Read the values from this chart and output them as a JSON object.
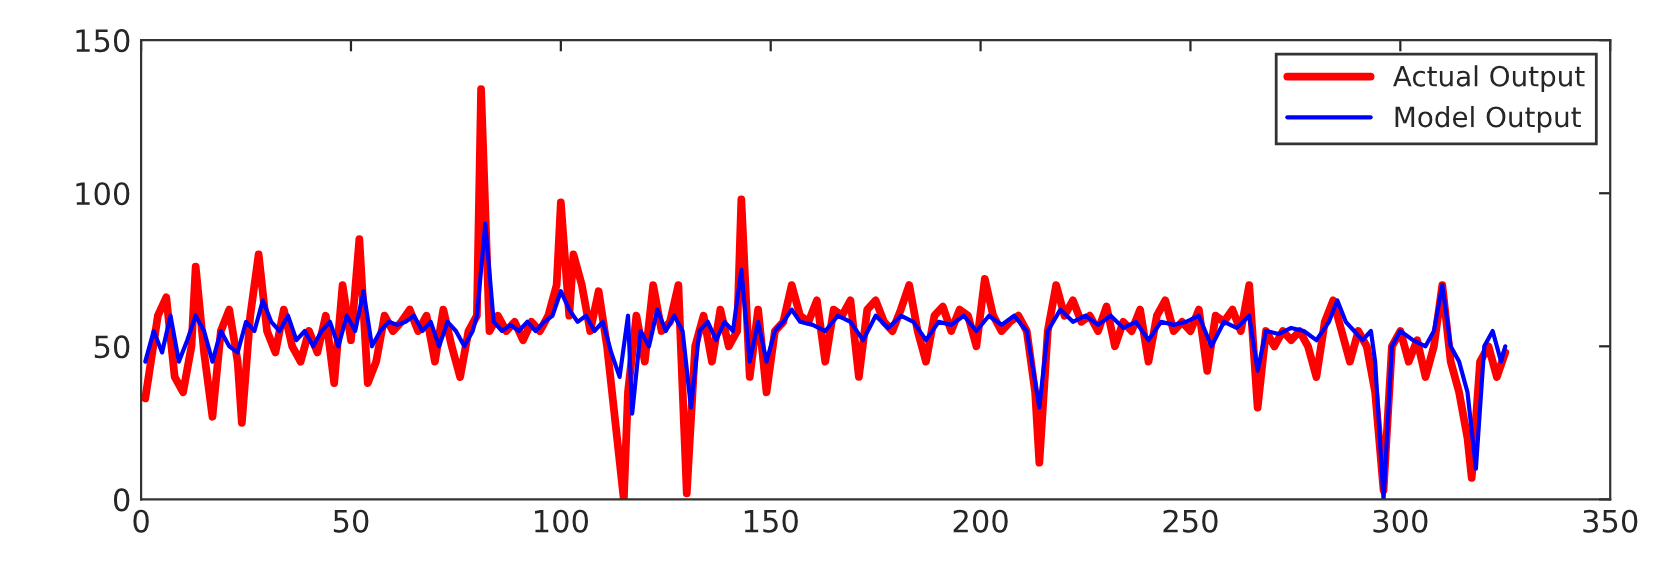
{
  "chart_data": {
    "type": "line",
    "xlim": [
      0,
      350
    ],
    "xticks": [
      0,
      50,
      100,
      150,
      200,
      250,
      300,
      350
    ],
    "ylim": [
      0,
      150
    ],
    "yticks": [
      0,
      50,
      100,
      150
    ],
    "grid": false,
    "legend": "top right",
    "marker": "none",
    "line_style": "solid",
    "series": [
      {
        "name": "Actual Output",
        "color": "#ff0000",
        "x": [
          1,
          4,
          6,
          8,
          10,
          12,
          13,
          15,
          17,
          19,
          21,
          23,
          24,
          26,
          28,
          30,
          32,
          34,
          36,
          38,
          40,
          42,
          44,
          46,
          48,
          50,
          52,
          54,
          56,
          58,
          60,
          62,
          64,
          66,
          68,
          70,
          72,
          74,
          76,
          78,
          80,
          81,
          83,
          85,
          87,
          89,
          91,
          93,
          95,
          97,
          99,
          100,
          102,
          103,
          105,
          107,
          109,
          111,
          113,
          115,
          116,
          118,
          120,
          122,
          124,
          126,
          128,
          130,
          132,
          134,
          136,
          138,
          140,
          142,
          143,
          145,
          147,
          149,
          151,
          153,
          155,
          157,
          159,
          161,
          163,
          165,
          167,
          169,
          171,
          173,
          175,
          177,
          179,
          181,
          183,
          185,
          187,
          189,
          191,
          193,
          195,
          197,
          199,
          201,
          203,
          205,
          207,
          209,
          211,
          213,
          214,
          216,
          218,
          220,
          222,
          224,
          226,
          228,
          230,
          232,
          234,
          236,
          238,
          240,
          242,
          244,
          246,
          248,
          250,
          252,
          254,
          256,
          258,
          260,
          262,
          264,
          266,
          268,
          270,
          272,
          274,
          276,
          278,
          280,
          282,
          284,
          286,
          288,
          290,
          292,
          294,
          296,
          298,
          300,
          302,
          304,
          306,
          308,
          310,
          312,
          314,
          316,
          317,
          319,
          321,
          323,
          325
        ],
        "values": [
          33,
          60,
          66,
          40,
          35,
          50,
          76,
          48,
          27,
          55,
          62,
          45,
          25,
          60,
          80,
          55,
          48,
          62,
          50,
          45,
          55,
          48,
          60,
          38,
          70,
          52,
          85,
          38,
          45,
          60,
          55,
          58,
          62,
          55,
          60,
          45,
          62,
          50,
          40,
          55,
          60,
          134,
          55,
          60,
          55,
          58,
          52,
          58,
          55,
          60,
          70,
          97,
          60,
          80,
          70,
          55,
          68,
          50,
          25,
          0,
          35,
          60,
          45,
          70,
          55,
          58,
          70,
          2,
          50,
          60,
          45,
          62,
          50,
          55,
          98,
          40,
          62,
          35,
          55,
          58,
          70,
          60,
          58,
          65,
          45,
          62,
          60,
          65,
          40,
          62,
          65,
          58,
          55,
          62,
          70,
          55,
          45,
          60,
          63,
          55,
          62,
          60,
          50,
          72,
          60,
          55,
          58,
          60,
          55,
          35,
          12,
          55,
          70,
          60,
          65,
          58,
          60,
          55,
          63,
          50,
          58,
          55,
          62,
          45,
          60,
          65,
          55,
          58,
          55,
          62,
          42,
          60,
          58,
          62,
          55,
          70,
          30,
          55,
          50,
          55,
          52,
          55,
          50,
          40,
          58,
          65,
          55,
          45,
          55,
          50,
          35,
          3,
          50,
          55,
          45,
          52,
          40,
          50,
          70,
          45,
          35,
          20,
          7,
          45,
          50,
          40,
          48
        ]
      },
      {
        "name": "Model Output",
        "color": "#0000ff",
        "x": [
          1,
          3,
          5,
          7,
          9,
          11,
          13,
          15,
          17,
          19,
          21,
          23,
          25,
          27,
          29,
          31,
          33,
          35,
          37,
          39,
          41,
          43,
          45,
          47,
          49,
          51,
          53,
          55,
          57,
          59,
          61,
          63,
          65,
          67,
          69,
          71,
          73,
          75,
          77,
          79,
          80,
          82,
          84,
          86,
          88,
          90,
          92,
          94,
          96,
          98,
          100,
          102,
          104,
          106,
          108,
          110,
          112,
          114,
          116,
          117,
          119,
          121,
          123,
          125,
          127,
          129,
          131,
          133,
          135,
          137,
          139,
          141,
          143,
          145,
          147,
          149,
          151,
          153,
          155,
          157,
          160,
          163,
          166,
          169,
          172,
          175,
          178,
          181,
          184,
          187,
          190,
          193,
          196,
          199,
          202,
          205,
          208,
          211,
          214,
          216,
          219,
          222,
          225,
          228,
          231,
          234,
          237,
          240,
          243,
          246,
          249,
          252,
          255,
          258,
          261,
          264,
          266,
          268,
          271,
          274,
          277,
          280,
          283,
          285,
          287,
          289,
          291,
          293,
          294,
          296,
          298,
          300,
          303,
          306,
          308,
          310,
          312,
          314,
          316,
          318,
          320,
          322,
          324,
          325
        ],
        "values": [
          45,
          55,
          48,
          60,
          45,
          52,
          60,
          55,
          45,
          55,
          50,
          48,
          58,
          55,
          65,
          58,
          55,
          60,
          52,
          55,
          50,
          55,
          58,
          50,
          60,
          55,
          68,
          50,
          55,
          58,
          57,
          58,
          60,
          55,
          58,
          50,
          58,
          55,
          50,
          55,
          60,
          90,
          58,
          55,
          57,
          55,
          58,
          55,
          58,
          60,
          68,
          62,
          58,
          60,
          55,
          58,
          48,
          40,
          60,
          28,
          55,
          50,
          62,
          55,
          60,
          55,
          30,
          55,
          58,
          52,
          58,
          55,
          75,
          45,
          58,
          45,
          55,
          58,
          62,
          58,
          57,
          55,
          60,
          58,
          52,
          60,
          56,
          60,
          58,
          52,
          58,
          57,
          60,
          55,
          60,
          57,
          60,
          55,
          30,
          55,
          62,
          58,
          60,
          57,
          60,
          56,
          58,
          52,
          58,
          57,
          58,
          60,
          50,
          58,
          56,
          60,
          42,
          55,
          54,
          56,
          55,
          52,
          58,
          65,
          58,
          55,
          52,
          55,
          45,
          0,
          50,
          55,
          52,
          50,
          55,
          70,
          50,
          45,
          35,
          10,
          50,
          55,
          45,
          50
        ]
      }
    ]
  }
}
